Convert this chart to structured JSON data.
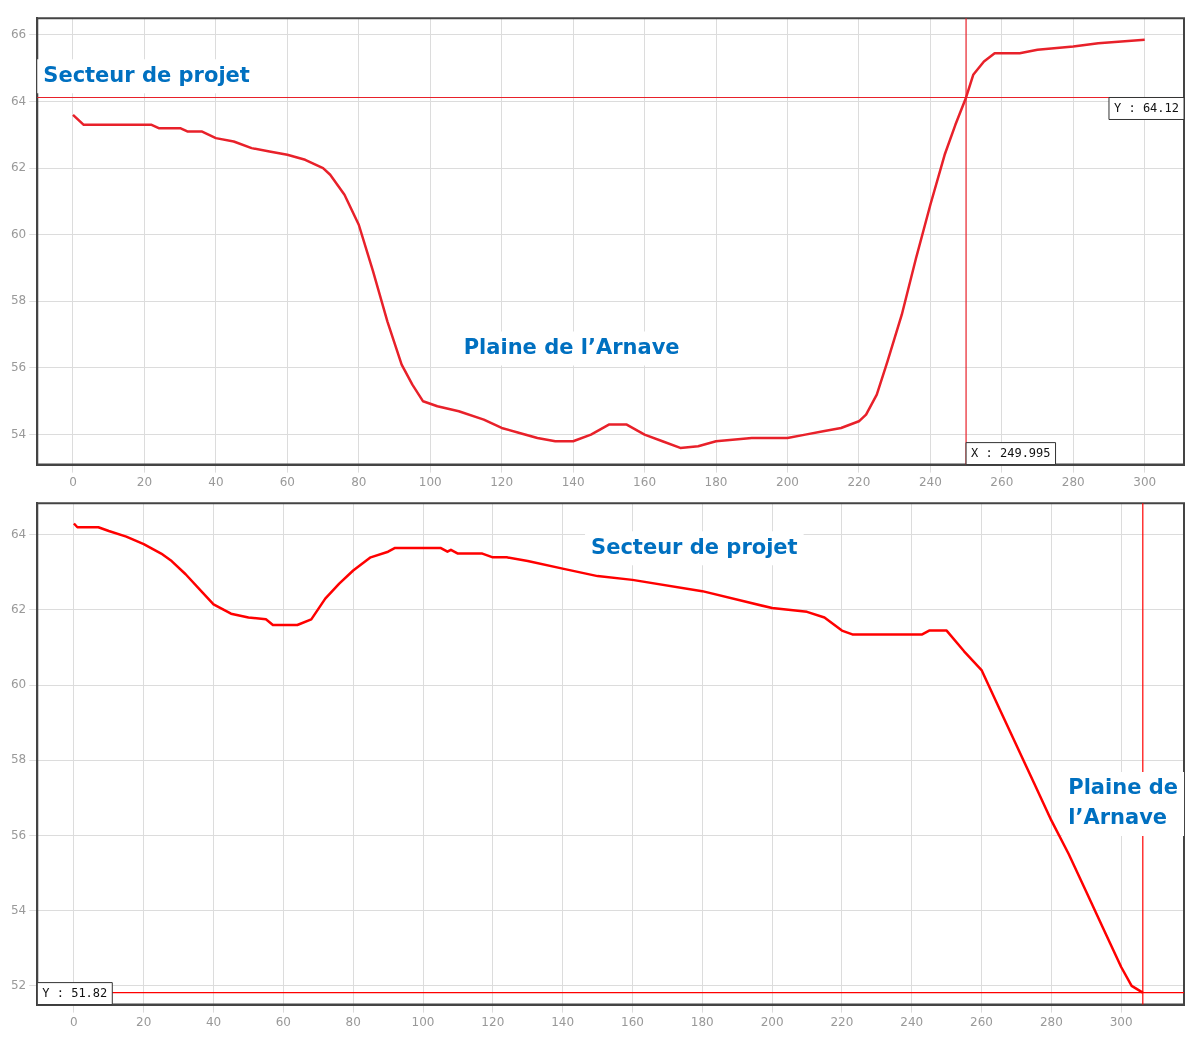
{
  "chart_data": [
    {
      "type": "line",
      "xlim": [
        -10,
        311
      ],
      "xticks": [
        0,
        20,
        40,
        60,
        80,
        100,
        120,
        140,
        160,
        180,
        200,
        220,
        240,
        260,
        280,
        300
      ],
      "ylim": [
        53.1,
        66.5
      ],
      "yticks": [
        54,
        56,
        58,
        60,
        62,
        64,
        66
      ],
      "grid": true,
      "series": [
        {
          "color": "#e8212a",
          "x": [
            0,
            3,
            22,
            24,
            30,
            32,
            36,
            40,
            45,
            50,
            55,
            60,
            65,
            70,
            72,
            76,
            80,
            84,
            88,
            92,
            95,
            98,
            102,
            108,
            115,
            120,
            125,
            130,
            135,
            140,
            145,
            150,
            155,
            160,
            165,
            170,
            175,
            180,
            190,
            200,
            205,
            210,
            215,
            220,
            222,
            225,
            228,
            232,
            236,
            240,
            244,
            247,
            250,
            252,
            255,
            258,
            265,
            270,
            280,
            287,
            300
          ],
          "values": [
            63.6,
            63.3,
            63.3,
            63.2,
            63.2,
            63.1,
            63.1,
            62.9,
            62.8,
            62.6,
            62.5,
            62.4,
            62.25,
            62.0,
            61.8,
            61.2,
            60.3,
            58.9,
            57.4,
            56.1,
            55.5,
            55.0,
            54.85,
            54.7,
            54.45,
            54.2,
            54.05,
            53.9,
            53.8,
            53.8,
            54.0,
            54.3,
            54.3,
            54.0,
            53.8,
            53.6,
            53.65,
            53.8,
            53.9,
            53.9,
            54.0,
            54.1,
            54.2,
            54.4,
            54.6,
            55.2,
            56.2,
            57.6,
            59.3,
            60.9,
            62.4,
            63.3,
            64.12,
            64.8,
            65.2,
            65.45,
            65.45,
            65.55,
            65.65,
            65.75,
            65.85
          ]
        }
      ],
      "ref_lines": [
        {
          "axis": "y",
          "value": 64.12,
          "label": "Y : 64.12",
          "color": "#e8212a"
        },
        {
          "axis": "x",
          "value": 249.995,
          "label": "X : 249.995",
          "color": "#e8212a"
        }
      ],
      "annotations": [
        "Secteur de projet",
        "Plaine de l’Arnave"
      ]
    },
    {
      "type": "line",
      "xlim": [
        -10.5,
        318
      ],
      "xticks": [
        0,
        20,
        40,
        60,
        80,
        100,
        120,
        140,
        160,
        180,
        200,
        220,
        240,
        260,
        280,
        300
      ],
      "ylim": [
        51.5,
        64.84
      ],
      "yticks": [
        52,
        54,
        56,
        58,
        60,
        62,
        64
      ],
      "grid": true,
      "series": [
        {
          "color": "#ff0000",
          "x": [
            0,
            1,
            7,
            10,
            15,
            20,
            25,
            28,
            32,
            37,
            40,
            45,
            50,
            55,
            57,
            64,
            68,
            72,
            76,
            80,
            85,
            90,
            92,
            105,
            107,
            108,
            110,
            117,
            120,
            124,
            130,
            140,
            150,
            160,
            180,
            200,
            210,
            215,
            220,
            223,
            243,
            245,
            250,
            255,
            260,
            265,
            270,
            275,
            280,
            285,
            290,
            295,
            300,
            303,
            306.2
          ],
          "values": [
            64.3,
            64.2,
            64.2,
            64.1,
            63.95,
            63.75,
            63.5,
            63.3,
            62.95,
            62.45,
            62.15,
            61.9,
            61.8,
            61.75,
            61.6,
            61.6,
            61.75,
            62.3,
            62.7,
            63.05,
            63.4,
            63.55,
            63.65,
            63.65,
            63.55,
            63.6,
            63.5,
            63.5,
            63.4,
            63.4,
            63.3,
            63.1,
            62.9,
            62.8,
            62.5,
            62.05,
            61.95,
            61.8,
            61.45,
            61.35,
            61.35,
            61.45,
            61.45,
            60.9,
            60.4,
            59.4,
            58.4,
            57.4,
            56.4,
            55.5,
            54.5,
            53.5,
            52.5,
            52.0,
            51.82
          ]
        }
      ],
      "ref_lines": [
        {
          "axis": "y",
          "value": 51.82,
          "label": "Y : 51.82",
          "color": "#ff0000"
        },
        {
          "axis": "x",
          "value": 306.2,
          "color": "#ff0000"
        }
      ],
      "annotations": [
        "Secteur de projet",
        "Plaine de l’Arnave"
      ]
    }
  ]
}
